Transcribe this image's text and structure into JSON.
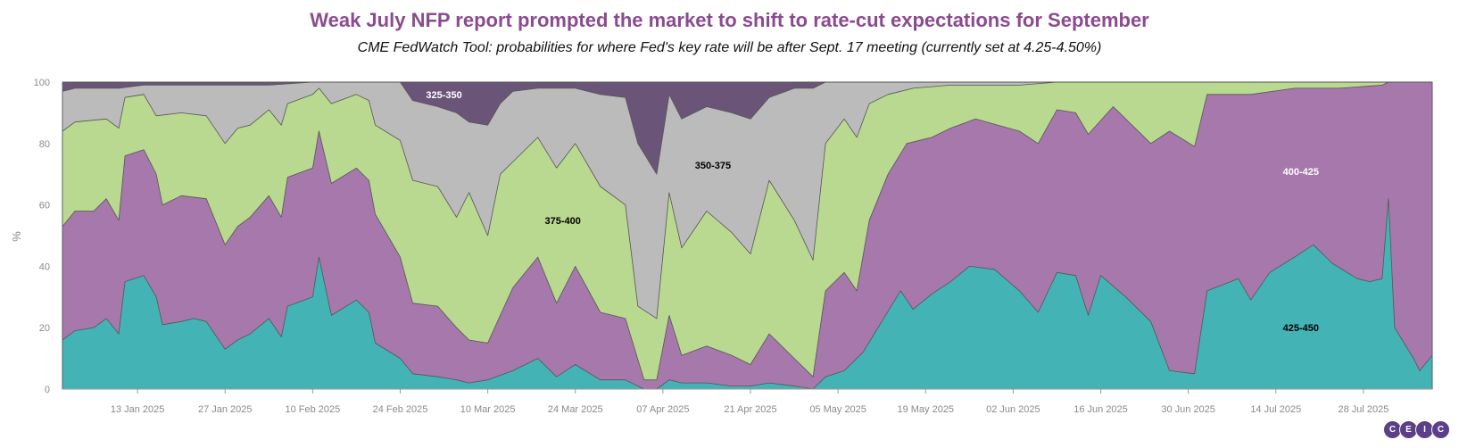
{
  "title": "Weak July NFP report prompted the market to shift to rate-cut expectations for September",
  "subtitle": "CME FedWatch Tool: probabilities for where Fed's key rate will be after Sept. 17 meeting (currently set at 4.25-4.50%)",
  "logo_letters": [
    "C",
    "E",
    "I",
    "C"
  ],
  "chart_data": {
    "type": "area",
    "stacked": true,
    "ylabel": "%",
    "ylim": [
      0,
      100
    ],
    "yticks": [
      0,
      20,
      40,
      60,
      80,
      100
    ],
    "xrange": [
      "2025-01-01",
      "2025-08-08"
    ],
    "xticks": [
      {
        "date": "2025-01-13",
        "label": "13 Jan 2025"
      },
      {
        "date": "2025-01-27",
        "label": "27 Jan 2025"
      },
      {
        "date": "2025-02-10",
        "label": "10 Feb 2025"
      },
      {
        "date": "2025-02-24",
        "label": "24 Feb 2025"
      },
      {
        "date": "2025-03-10",
        "label": "10 Mar 2025"
      },
      {
        "date": "2025-03-24",
        "label": "24 Mar 2025"
      },
      {
        "date": "2025-04-07",
        "label": "07 Apr 2025"
      },
      {
        "date": "2025-04-21",
        "label": "21 Apr 2025"
      },
      {
        "date": "2025-05-05",
        "label": "05 May 2025"
      },
      {
        "date": "2025-05-19",
        "label": "19 May 2025"
      },
      {
        "date": "2025-06-02",
        "label": "02 Jun 2025"
      },
      {
        "date": "2025-06-16",
        "label": "16 Jun 2025"
      },
      {
        "date": "2025-06-30",
        "label": "30 Jun 2025"
      },
      {
        "date": "2025-07-14",
        "label": "14 Jul 2025"
      },
      {
        "date": "2025-07-28",
        "label": "28 Jul 2025"
      }
    ],
    "colors": {
      "425-450": "#44b3b6",
      "400-425": "#a678ab",
      "375-400": "#b9d890",
      "350-375": "#bbbbbb",
      "325-350": "#6a5579"
    },
    "series": [
      {
        "name": "425-450",
        "label_pos": [
          "2025-07-18",
          20
        ],
        "label_color": "#000000",
        "points": [
          [
            "2025-01-01",
            16
          ],
          [
            "2025-01-03",
            19
          ],
          [
            "2025-01-06",
            20
          ],
          [
            "2025-01-08",
            23
          ],
          [
            "2025-01-10",
            18
          ],
          [
            "2025-01-11",
            35
          ],
          [
            "2025-01-14",
            37
          ],
          [
            "2025-01-16",
            30
          ],
          [
            "2025-01-17",
            21
          ],
          [
            "2025-01-20",
            22
          ],
          [
            "2025-01-22",
            23
          ],
          [
            "2025-01-24",
            22
          ],
          [
            "2025-01-27",
            13
          ],
          [
            "2025-01-29",
            16
          ],
          [
            "2025-01-31",
            18
          ],
          [
            "2025-02-03",
            23
          ],
          [
            "2025-02-05",
            17
          ],
          [
            "2025-02-06",
            27
          ],
          [
            "2025-02-10",
            30
          ],
          [
            "2025-02-11",
            43
          ],
          [
            "2025-02-13",
            24
          ],
          [
            "2025-02-17",
            29
          ],
          [
            "2025-02-19",
            25
          ],
          [
            "2025-02-20",
            15
          ],
          [
            "2025-02-24",
            10
          ],
          [
            "2025-02-26",
            5
          ],
          [
            "2025-03-02",
            4
          ],
          [
            "2025-03-05",
            3
          ],
          [
            "2025-03-07",
            2
          ],
          [
            "2025-03-10",
            3
          ],
          [
            "2025-03-14",
            6
          ],
          [
            "2025-03-18",
            10
          ],
          [
            "2025-03-21",
            4
          ],
          [
            "2025-03-24",
            8
          ],
          [
            "2025-03-28",
            3
          ],
          [
            "2025-04-01",
            3
          ],
          [
            "2025-04-04",
            0
          ],
          [
            "2025-04-06",
            0
          ],
          [
            "2025-04-08",
            3
          ],
          [
            "2025-04-10",
            2
          ],
          [
            "2025-04-14",
            2
          ],
          [
            "2025-04-18",
            1
          ],
          [
            "2025-04-21",
            1
          ],
          [
            "2025-04-24",
            2
          ],
          [
            "2025-04-28",
            1
          ],
          [
            "2025-05-01",
            0
          ],
          [
            "2025-05-03",
            4
          ],
          [
            "2025-05-06",
            6
          ],
          [
            "2025-05-09",
            12
          ],
          [
            "2025-05-12",
            22
          ],
          [
            "2025-05-15",
            32
          ],
          [
            "2025-05-17",
            26
          ],
          [
            "2025-05-20",
            31
          ],
          [
            "2025-05-23",
            35
          ],
          [
            "2025-05-26",
            40
          ],
          [
            "2025-05-30",
            39
          ],
          [
            "2025-06-03",
            32
          ],
          [
            "2025-06-06",
            25
          ],
          [
            "2025-06-09",
            38
          ],
          [
            "2025-06-12",
            37
          ],
          [
            "2025-06-14",
            24
          ],
          [
            "2025-06-16",
            37
          ],
          [
            "2025-06-20",
            30
          ],
          [
            "2025-06-24",
            22
          ],
          [
            "2025-06-27",
            6
          ],
          [
            "2025-07-01",
            5
          ],
          [
            "2025-07-03",
            32
          ],
          [
            "2025-07-08",
            36
          ],
          [
            "2025-07-10",
            29
          ],
          [
            "2025-07-13",
            38
          ],
          [
            "2025-07-17",
            43
          ],
          [
            "2025-07-20",
            47
          ],
          [
            "2025-07-23",
            41
          ],
          [
            "2025-07-27",
            36
          ],
          [
            "2025-07-29",
            35
          ],
          [
            "2025-07-31",
            36
          ],
          [
            "2025-08-01",
            62
          ],
          [
            "2025-08-02",
            20
          ],
          [
            "2025-08-05",
            10
          ],
          [
            "2025-08-06",
            6
          ],
          [
            "2025-08-08",
            11
          ]
        ]
      },
      {
        "name": "400-425",
        "label_pos": [
          "2025-07-18",
          71
        ],
        "label_color": "#ffffff",
        "points": [
          [
            "2025-01-01",
            53
          ],
          [
            "2025-01-03",
            58
          ],
          [
            "2025-01-06",
            58
          ],
          [
            "2025-01-08",
            62
          ],
          [
            "2025-01-10",
            55
          ],
          [
            "2025-01-11",
            76
          ],
          [
            "2025-01-14",
            78
          ],
          [
            "2025-01-16",
            70
          ],
          [
            "2025-01-17",
            60
          ],
          [
            "2025-01-20",
            63
          ],
          [
            "2025-01-24",
            62
          ],
          [
            "2025-01-27",
            47
          ],
          [
            "2025-01-29",
            53
          ],
          [
            "2025-01-31",
            56
          ],
          [
            "2025-02-03",
            63
          ],
          [
            "2025-02-05",
            56
          ],
          [
            "2025-02-06",
            69
          ],
          [
            "2025-02-10",
            72
          ],
          [
            "2025-02-11",
            84
          ],
          [
            "2025-02-13",
            67
          ],
          [
            "2025-02-17",
            72
          ],
          [
            "2025-02-19",
            68
          ],
          [
            "2025-02-20",
            57
          ],
          [
            "2025-02-24",
            43
          ],
          [
            "2025-02-26",
            28
          ],
          [
            "2025-03-02",
            27
          ],
          [
            "2025-03-05",
            20
          ],
          [
            "2025-03-07",
            16
          ],
          [
            "2025-03-10",
            15
          ],
          [
            "2025-03-12",
            24
          ],
          [
            "2025-03-14",
            33
          ],
          [
            "2025-03-18",
            43
          ],
          [
            "2025-03-21",
            28
          ],
          [
            "2025-03-24",
            40
          ],
          [
            "2025-03-28",
            25
          ],
          [
            "2025-04-01",
            23
          ],
          [
            "2025-04-04",
            3
          ],
          [
            "2025-04-06",
            3
          ],
          [
            "2025-04-08",
            24
          ],
          [
            "2025-04-10",
            11
          ],
          [
            "2025-04-14",
            14
          ],
          [
            "2025-04-18",
            11
          ],
          [
            "2025-04-21",
            8
          ],
          [
            "2025-04-24",
            18
          ],
          [
            "2025-04-28",
            10
          ],
          [
            "2025-05-01",
            4
          ],
          [
            "2025-05-03",
            32
          ],
          [
            "2025-05-06",
            38
          ],
          [
            "2025-05-08",
            32
          ],
          [
            "2025-05-10",
            55
          ],
          [
            "2025-05-13",
            70
          ],
          [
            "2025-05-16",
            80
          ],
          [
            "2025-05-20",
            82
          ],
          [
            "2025-05-23",
            85
          ],
          [
            "2025-05-27",
            88
          ],
          [
            "2025-06-03",
            84
          ],
          [
            "2025-06-06",
            80
          ],
          [
            "2025-06-09",
            91
          ],
          [
            "2025-06-12",
            90
          ],
          [
            "2025-06-14",
            83
          ],
          [
            "2025-06-18",
            92
          ],
          [
            "2025-06-24",
            80
          ],
          [
            "2025-06-27",
            84
          ],
          [
            "2025-07-01",
            79
          ],
          [
            "2025-07-03",
            96
          ],
          [
            "2025-07-10",
            96
          ],
          [
            "2025-07-17",
            98
          ],
          [
            "2025-07-24",
            98
          ],
          [
            "2025-07-31",
            99
          ],
          [
            "2025-08-01",
            100
          ],
          [
            "2025-08-08",
            100
          ]
        ]
      },
      {
        "name": "375-400",
        "label_pos": [
          "2025-03-22",
          55
        ],
        "label_color": "#000000",
        "points": [
          [
            "2025-01-01",
            84
          ],
          [
            "2025-01-03",
            87
          ],
          [
            "2025-01-08",
            88
          ],
          [
            "2025-01-10",
            85
          ],
          [
            "2025-01-11",
            95
          ],
          [
            "2025-01-14",
            96
          ],
          [
            "2025-01-16",
            89
          ],
          [
            "2025-01-20",
            90
          ],
          [
            "2025-01-24",
            89
          ],
          [
            "2025-01-27",
            80
          ],
          [
            "2025-01-29",
            85
          ],
          [
            "2025-01-31",
            86
          ],
          [
            "2025-02-03",
            91
          ],
          [
            "2025-02-05",
            86
          ],
          [
            "2025-02-06",
            93
          ],
          [
            "2025-02-10",
            96
          ],
          [
            "2025-02-11",
            98
          ],
          [
            "2025-02-13",
            93
          ],
          [
            "2025-02-17",
            96
          ],
          [
            "2025-02-19",
            94
          ],
          [
            "2025-02-20",
            86
          ],
          [
            "2025-02-24",
            81
          ],
          [
            "2025-02-26",
            68
          ],
          [
            "2025-03-02",
            66
          ],
          [
            "2025-03-05",
            56
          ],
          [
            "2025-03-07",
            64
          ],
          [
            "2025-03-10",
            50
          ],
          [
            "2025-03-12",
            70
          ],
          [
            "2025-03-14",
            74
          ],
          [
            "2025-03-18",
            82
          ],
          [
            "2025-03-21",
            72
          ],
          [
            "2025-03-24",
            80
          ],
          [
            "2025-03-28",
            66
          ],
          [
            "2025-04-01",
            60
          ],
          [
            "2025-04-03",
            27
          ],
          [
            "2025-04-06",
            23
          ],
          [
            "2025-04-08",
            64
          ],
          [
            "2025-04-10",
            46
          ],
          [
            "2025-04-14",
            58
          ],
          [
            "2025-04-18",
            51
          ],
          [
            "2025-04-21",
            44
          ],
          [
            "2025-04-24",
            68
          ],
          [
            "2025-04-28",
            55
          ],
          [
            "2025-05-01",
            42
          ],
          [
            "2025-05-03",
            80
          ],
          [
            "2025-05-06",
            88
          ],
          [
            "2025-05-08",
            82
          ],
          [
            "2025-05-10",
            93
          ],
          [
            "2025-05-13",
            96
          ],
          [
            "2025-05-17",
            98
          ],
          [
            "2025-05-23",
            99
          ],
          [
            "2025-06-03",
            99
          ],
          [
            "2025-06-09",
            100
          ],
          [
            "2025-08-08",
            100
          ]
        ]
      },
      {
        "name": "350-375",
        "label_pos": [
          "2025-04-15",
          73
        ],
        "label_color": "#000000",
        "points": [
          [
            "2025-01-01",
            97
          ],
          [
            "2025-01-03",
            98
          ],
          [
            "2025-01-10",
            98
          ],
          [
            "2025-01-14",
            99
          ],
          [
            "2025-01-24",
            99
          ],
          [
            "2025-02-03",
            99
          ],
          [
            "2025-02-10",
            100
          ],
          [
            "2025-02-24",
            100
          ],
          [
            "2025-02-26",
            94
          ],
          [
            "2025-03-02",
            92
          ],
          [
            "2025-03-05",
            90
          ],
          [
            "2025-03-07",
            87
          ],
          [
            "2025-03-10",
            86
          ],
          [
            "2025-03-12",
            93
          ],
          [
            "2025-03-14",
            97
          ],
          [
            "2025-03-18",
            98
          ],
          [
            "2025-03-24",
            98
          ],
          [
            "2025-03-28",
            96
          ],
          [
            "2025-04-01",
            95
          ],
          [
            "2025-04-03",
            80
          ],
          [
            "2025-04-06",
            70
          ],
          [
            "2025-04-08",
            96
          ],
          [
            "2025-04-10",
            88
          ],
          [
            "2025-04-14",
            92
          ],
          [
            "2025-04-18",
            90
          ],
          [
            "2025-04-21",
            88
          ],
          [
            "2025-04-24",
            95
          ],
          [
            "2025-04-28",
            98
          ],
          [
            "2025-05-01",
            98
          ],
          [
            "2025-05-03",
            100
          ],
          [
            "2025-08-08",
            100
          ]
        ]
      },
      {
        "name": "325-350",
        "label_pos": [
          "2025-03-03",
          96
        ],
        "label_color": "#ffffff",
        "points": [
          [
            "2025-01-01",
            100
          ],
          [
            "2025-08-08",
            100
          ]
        ]
      }
    ]
  }
}
